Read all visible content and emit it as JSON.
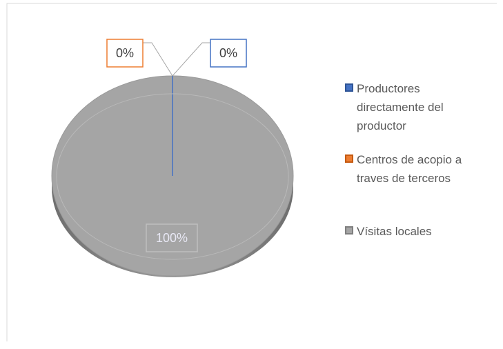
{
  "chart_data": {
    "type": "pie",
    "categories": [
      "Productores directamente del productor",
      "Centros de acopio a traves de terceros",
      "Vísitas locales"
    ],
    "values": [
      0,
      0,
      100
    ],
    "value_labels": [
      "0%",
      "0%",
      "100%"
    ],
    "colors": [
      "#4472c4",
      "#ed7d31",
      "#a5a5a5"
    ],
    "legend": "right"
  }
}
